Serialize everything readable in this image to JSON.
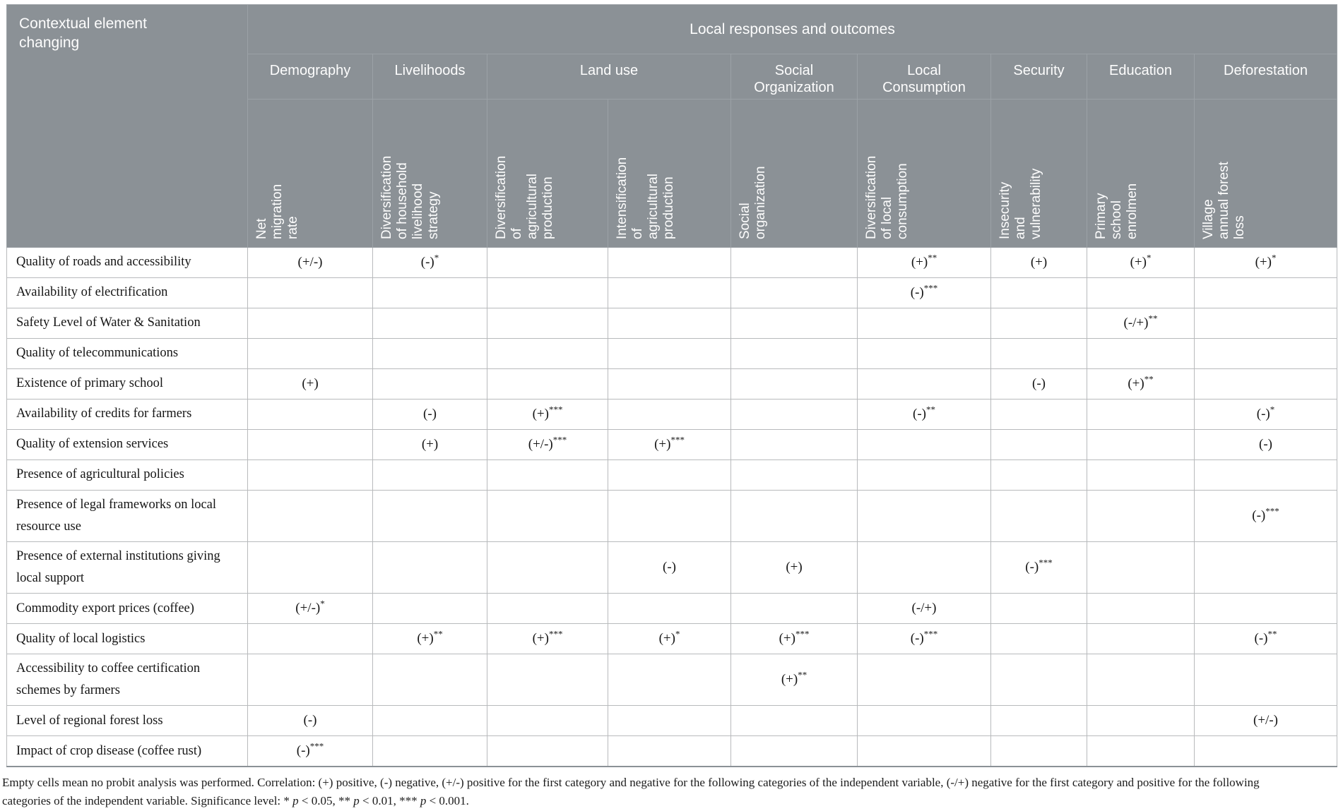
{
  "colors": {
    "header_bg": "#8b9196",
    "header_grid": "#9ba1a6",
    "body_grid": "#b8babc",
    "table_bottom_border": "#8b9196"
  },
  "table": {
    "corner_header": "Contextual element\nchanging",
    "top_header": "Local responses and outcomes",
    "groups": [
      {
        "label": "Demography",
        "span": 1
      },
      {
        "label": "Livelihoods",
        "span": 1
      },
      {
        "label": "Land use",
        "span": 2
      },
      {
        "label": "Social\nOrganization",
        "span": 1
      },
      {
        "label": "Local\nConsumption",
        "span": 1
      },
      {
        "label": "Security",
        "span": 1
      },
      {
        "label": "Education",
        "span": 1
      },
      {
        "label": "Deforestation",
        "span": 1
      }
    ],
    "columns": [
      "Net\nmigration\nrate",
      "Diversification\nof household\nlivelihood\nstrategy",
      "Diversification\nof\nagricultural\nproduction",
      "Intensification\nof\nagricultural\nproduction",
      "Social\norganization",
      "Diversification\nof local\nconsumption",
      "Insecurity\nand\nvulnerability",
      "Primary\nschool\nenrolmen",
      "Village\nannual forest\nloss"
    ],
    "rows": [
      {
        "label": "Quality of roads and accessibility",
        "cells": [
          "(+/-)",
          "(-)*",
          "",
          "",
          "",
          "(+)**",
          "(+)",
          "(+)*",
          "(+)*"
        ]
      },
      {
        "label": "Availability of electrification",
        "cells": [
          "",
          "",
          "",
          "",
          "",
          "(-)***",
          "",
          "",
          ""
        ]
      },
      {
        "label": "Safety Level of Water & Sanitation",
        "cells": [
          "",
          "",
          "",
          "",
          "",
          "",
          "",
          "(-/+)**",
          ""
        ]
      },
      {
        "label": "Quality of telecommunications",
        "cells": [
          "",
          "",
          "",
          "",
          "",
          "",
          "",
          "",
          ""
        ]
      },
      {
        "label": "Existence of primary school",
        "cells": [
          "(+)",
          "",
          "",
          "",
          "",
          "",
          "(-)",
          "(+)**",
          ""
        ]
      },
      {
        "label": "Availability of credits for farmers",
        "cells": [
          "",
          "(-)",
          "(+)***",
          "",
          "",
          "(-)**",
          "",
          "",
          "(-)*"
        ]
      },
      {
        "label": "Quality of extension services",
        "cells": [
          "",
          "(+)",
          "(+/-)***",
          "(+)***",
          "",
          "",
          "",
          "",
          "(-)"
        ]
      },
      {
        "label": "Presence of agricultural policies",
        "cells": [
          "",
          "",
          "",
          "",
          "",
          "",
          "",
          "",
          ""
        ]
      },
      {
        "label": "Presence of legal frameworks on local resource use",
        "cells": [
          "",
          "",
          "",
          "",
          "",
          "",
          "",
          "",
          "(-)***"
        ]
      },
      {
        "label": "Presence of external institutions giving local support",
        "cells": [
          "",
          "",
          "",
          "(-)",
          "(+)",
          "",
          "(-)***",
          "",
          ""
        ]
      },
      {
        "label": "Commodity export prices (coffee)",
        "cells": [
          "(+/-)*",
          "",
          "",
          "",
          "",
          "(-/+)",
          "",
          "",
          ""
        ]
      },
      {
        "label": "Quality of local logistics",
        "cells": [
          "",
          "(+)**",
          "(+)***",
          "(+)*",
          "(+)***",
          "(-)***",
          "",
          "",
          "(-)**"
        ]
      },
      {
        "label": "Accessibility to coffee certification schemes by farmers",
        "cells": [
          "",
          "",
          "",
          "",
          "(+)**",
          "",
          "",
          "",
          ""
        ]
      },
      {
        "label": "Level of regional forest loss",
        "cells": [
          "(-)",
          "",
          "",
          "",
          "",
          "",
          "",
          "",
          "(+/-)"
        ]
      },
      {
        "label": "Impact of crop disease (coffee rust)",
        "cells": [
          "(-)***",
          "",
          "",
          "",
          "",
          "",
          "",
          "",
          ""
        ]
      }
    ]
  },
  "footnote": {
    "lines": [
      "Empty cells mean no probit analysis was performed. Correlation: (+) positive, (-) negative, (+/-) positive for the first category and negative for the following categories of the independent variable, (-/+) negative for the first category and positive for the following",
      "categories of the independent variable. Significance level: * p < 0.05, ** p < 0.01, *** p < 0.001."
    ]
  }
}
